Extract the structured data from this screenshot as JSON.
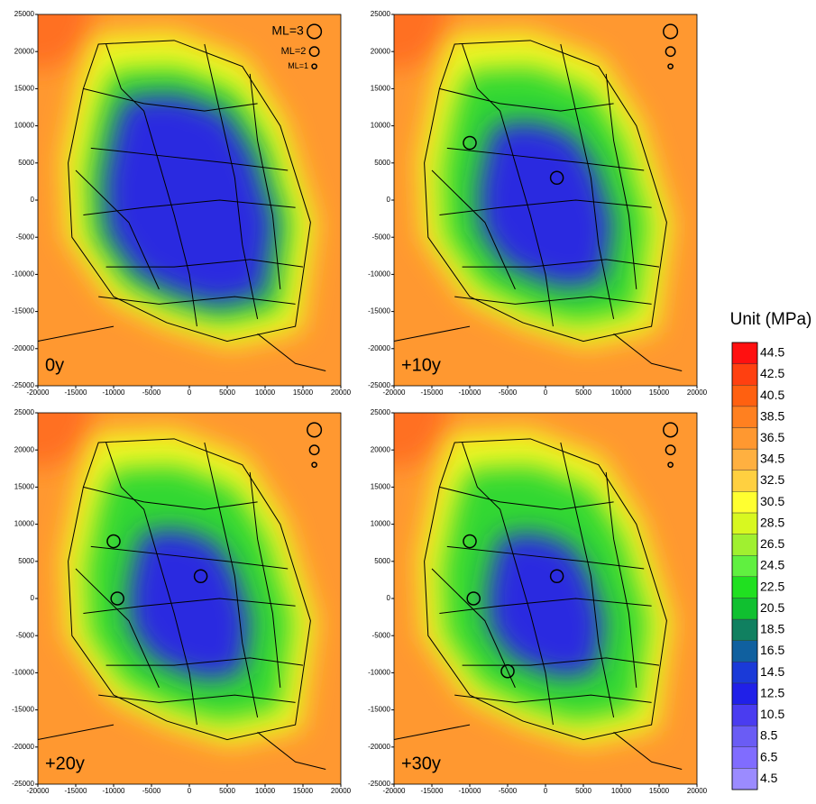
{
  "chart_data": [
    {
      "type": "contour",
      "label": "0y",
      "xlim": [
        -20000,
        20000
      ],
      "ylim": [
        -25000,
        25000
      ],
      "xticks": [
        -20000,
        -15000,
        -10000,
        -5000,
        0,
        5000,
        10000,
        15000,
        20000
      ],
      "yticks": [
        -25000,
        -20000,
        -15000,
        -10000,
        -5000,
        0,
        5000,
        10000,
        15000,
        20000,
        25000
      ],
      "size_legend": {
        "labels": [
          "ML=3",
          "ML=2",
          "ML=1"
        ],
        "values": [
          3,
          2,
          1
        ]
      },
      "events": {
        "x": [],
        "y": [],
        "magnitude": []
      }
    },
    {
      "type": "contour",
      "label": "+10y",
      "xlim": [
        -20000,
        20000
      ],
      "ylim": [
        -25000,
        25000
      ],
      "xticks": [
        -20000,
        -15000,
        -10000,
        -5000,
        0,
        5000,
        10000,
        15000,
        20000
      ],
      "yticks": [
        -25000,
        -20000,
        -15000,
        -10000,
        -5000,
        0,
        5000,
        10000,
        15000,
        20000,
        25000
      ],
      "events": {
        "x": [
          -10000,
          1500
        ],
        "y": [
          7700,
          3000
        ],
        "magnitude": [
          2.7,
          2.7
        ]
      }
    },
    {
      "type": "contour",
      "label": "+20y",
      "xlim": [
        -20000,
        20000
      ],
      "ylim": [
        -25000,
        25000
      ],
      "xticks": [
        -20000,
        -15000,
        -10000,
        -5000,
        0,
        5000,
        10000,
        15000,
        20000
      ],
      "yticks": [
        -25000,
        -20000,
        -15000,
        -10000,
        -5000,
        0,
        5000,
        10000,
        15000,
        20000,
        25000
      ],
      "events": {
        "x": [
          -10000,
          -9500,
          1500
        ],
        "y": [
          7700,
          0,
          3000
        ],
        "magnitude": [
          2.7,
          2.7,
          2.7
        ]
      }
    },
    {
      "type": "contour",
      "label": "+30y",
      "xlim": [
        -20000,
        20000
      ],
      "ylim": [
        -25000,
        25000
      ],
      "xticks": [
        -20000,
        -15000,
        -10000,
        -5000,
        0,
        5000,
        10000,
        15000,
        20000
      ],
      "yticks": [
        -25000,
        -20000,
        -15000,
        -10000,
        -5000,
        0,
        5000,
        10000,
        15000,
        20000,
        25000
      ],
      "events": {
        "x": [
          -10000,
          -9500,
          1500,
          -5000
        ],
        "y": [
          7700,
          0,
          3000,
          -9800
        ],
        "magnitude": [
          2.7,
          2.7,
          2.7,
          2.7
        ]
      }
    }
  ],
  "colorbar": {
    "title": "Unit (MPa)",
    "lim": [
      3.5,
      45.5
    ],
    "ticks": [
      4.5,
      6.5,
      8.5,
      10.5,
      12.5,
      14.5,
      16.5,
      18.5,
      20.5,
      22.5,
      24.5,
      26.5,
      28.5,
      30.5,
      32.5,
      34.5,
      36.5,
      38.5,
      40.5,
      42.5,
      44.5
    ],
    "colors": [
      "#9b8bff",
      "#806cff",
      "#6a5cf5",
      "#4a3cf0",
      "#2020e8",
      "#1a3ad8",
      "#10609f",
      "#108060",
      "#10c030",
      "#20e020",
      "#60f040",
      "#a0f030",
      "#d8f820",
      "#ffff30",
      "#ffd040",
      "#ffb040",
      "#ff9830",
      "#ff8020",
      "#ff6010",
      "#ff4010",
      "#ff1010"
    ]
  }
}
